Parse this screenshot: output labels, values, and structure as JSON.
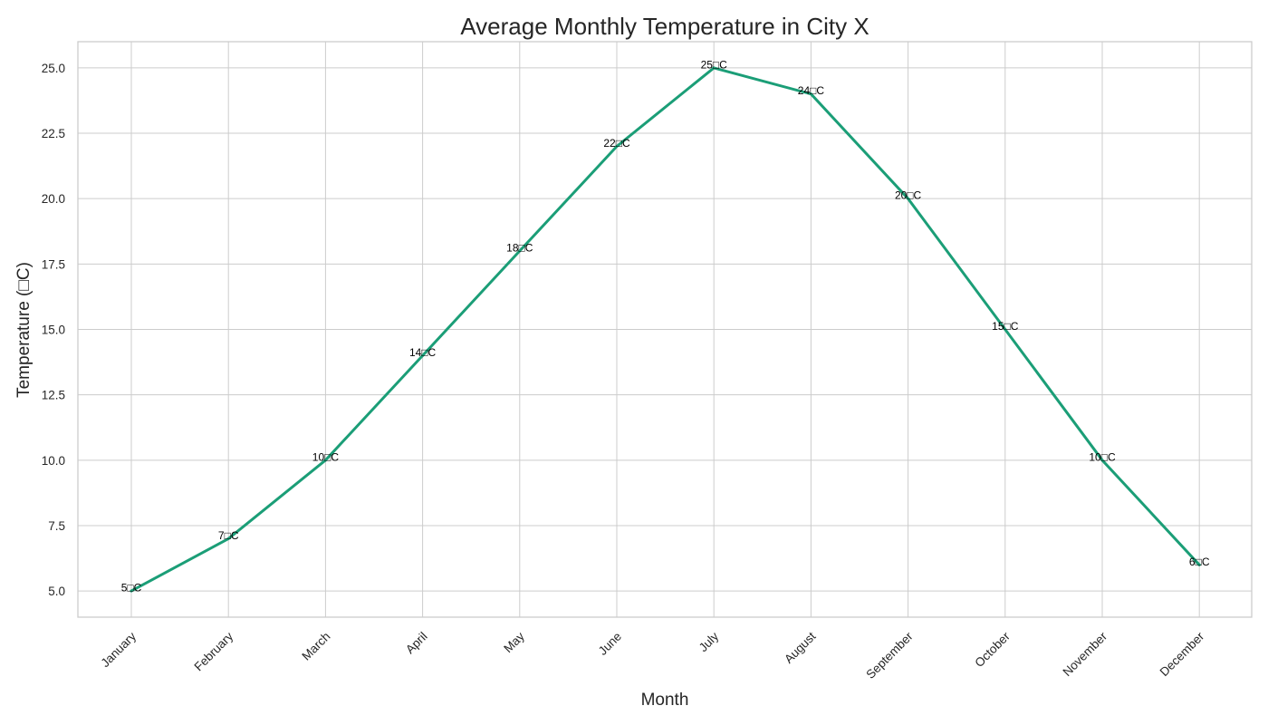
{
  "chart_data": {
    "type": "line",
    "title": "Average Monthly Temperature in City X",
    "xlabel": "Month",
    "ylabel": "Temperature (□C)",
    "categories": [
      "January",
      "February",
      "March",
      "April",
      "May",
      "June",
      "July",
      "August",
      "September",
      "October",
      "November",
      "December"
    ],
    "values": [
      5,
      7,
      10,
      14,
      18,
      22,
      25,
      24,
      20,
      15,
      10,
      6
    ],
    "data_labels": [
      "5□C",
      "7□C",
      "10□C",
      "14□C",
      "18□C",
      "22□C",
      "25□C",
      "24□C",
      "20□C",
      "15□C",
      "10□C",
      "6□C"
    ],
    "ylim": [
      4,
      26
    ],
    "yticks": [
      5.0,
      7.5,
      10.0,
      12.5,
      15.0,
      17.5,
      20.0,
      22.5,
      25.0
    ],
    "ytick_labels": [
      "5.0",
      "7.5",
      "10.0",
      "12.5",
      "15.0",
      "17.5",
      "20.0",
      "22.5",
      "25.0"
    ],
    "grid": true,
    "line_color": "#1b9e77"
  }
}
